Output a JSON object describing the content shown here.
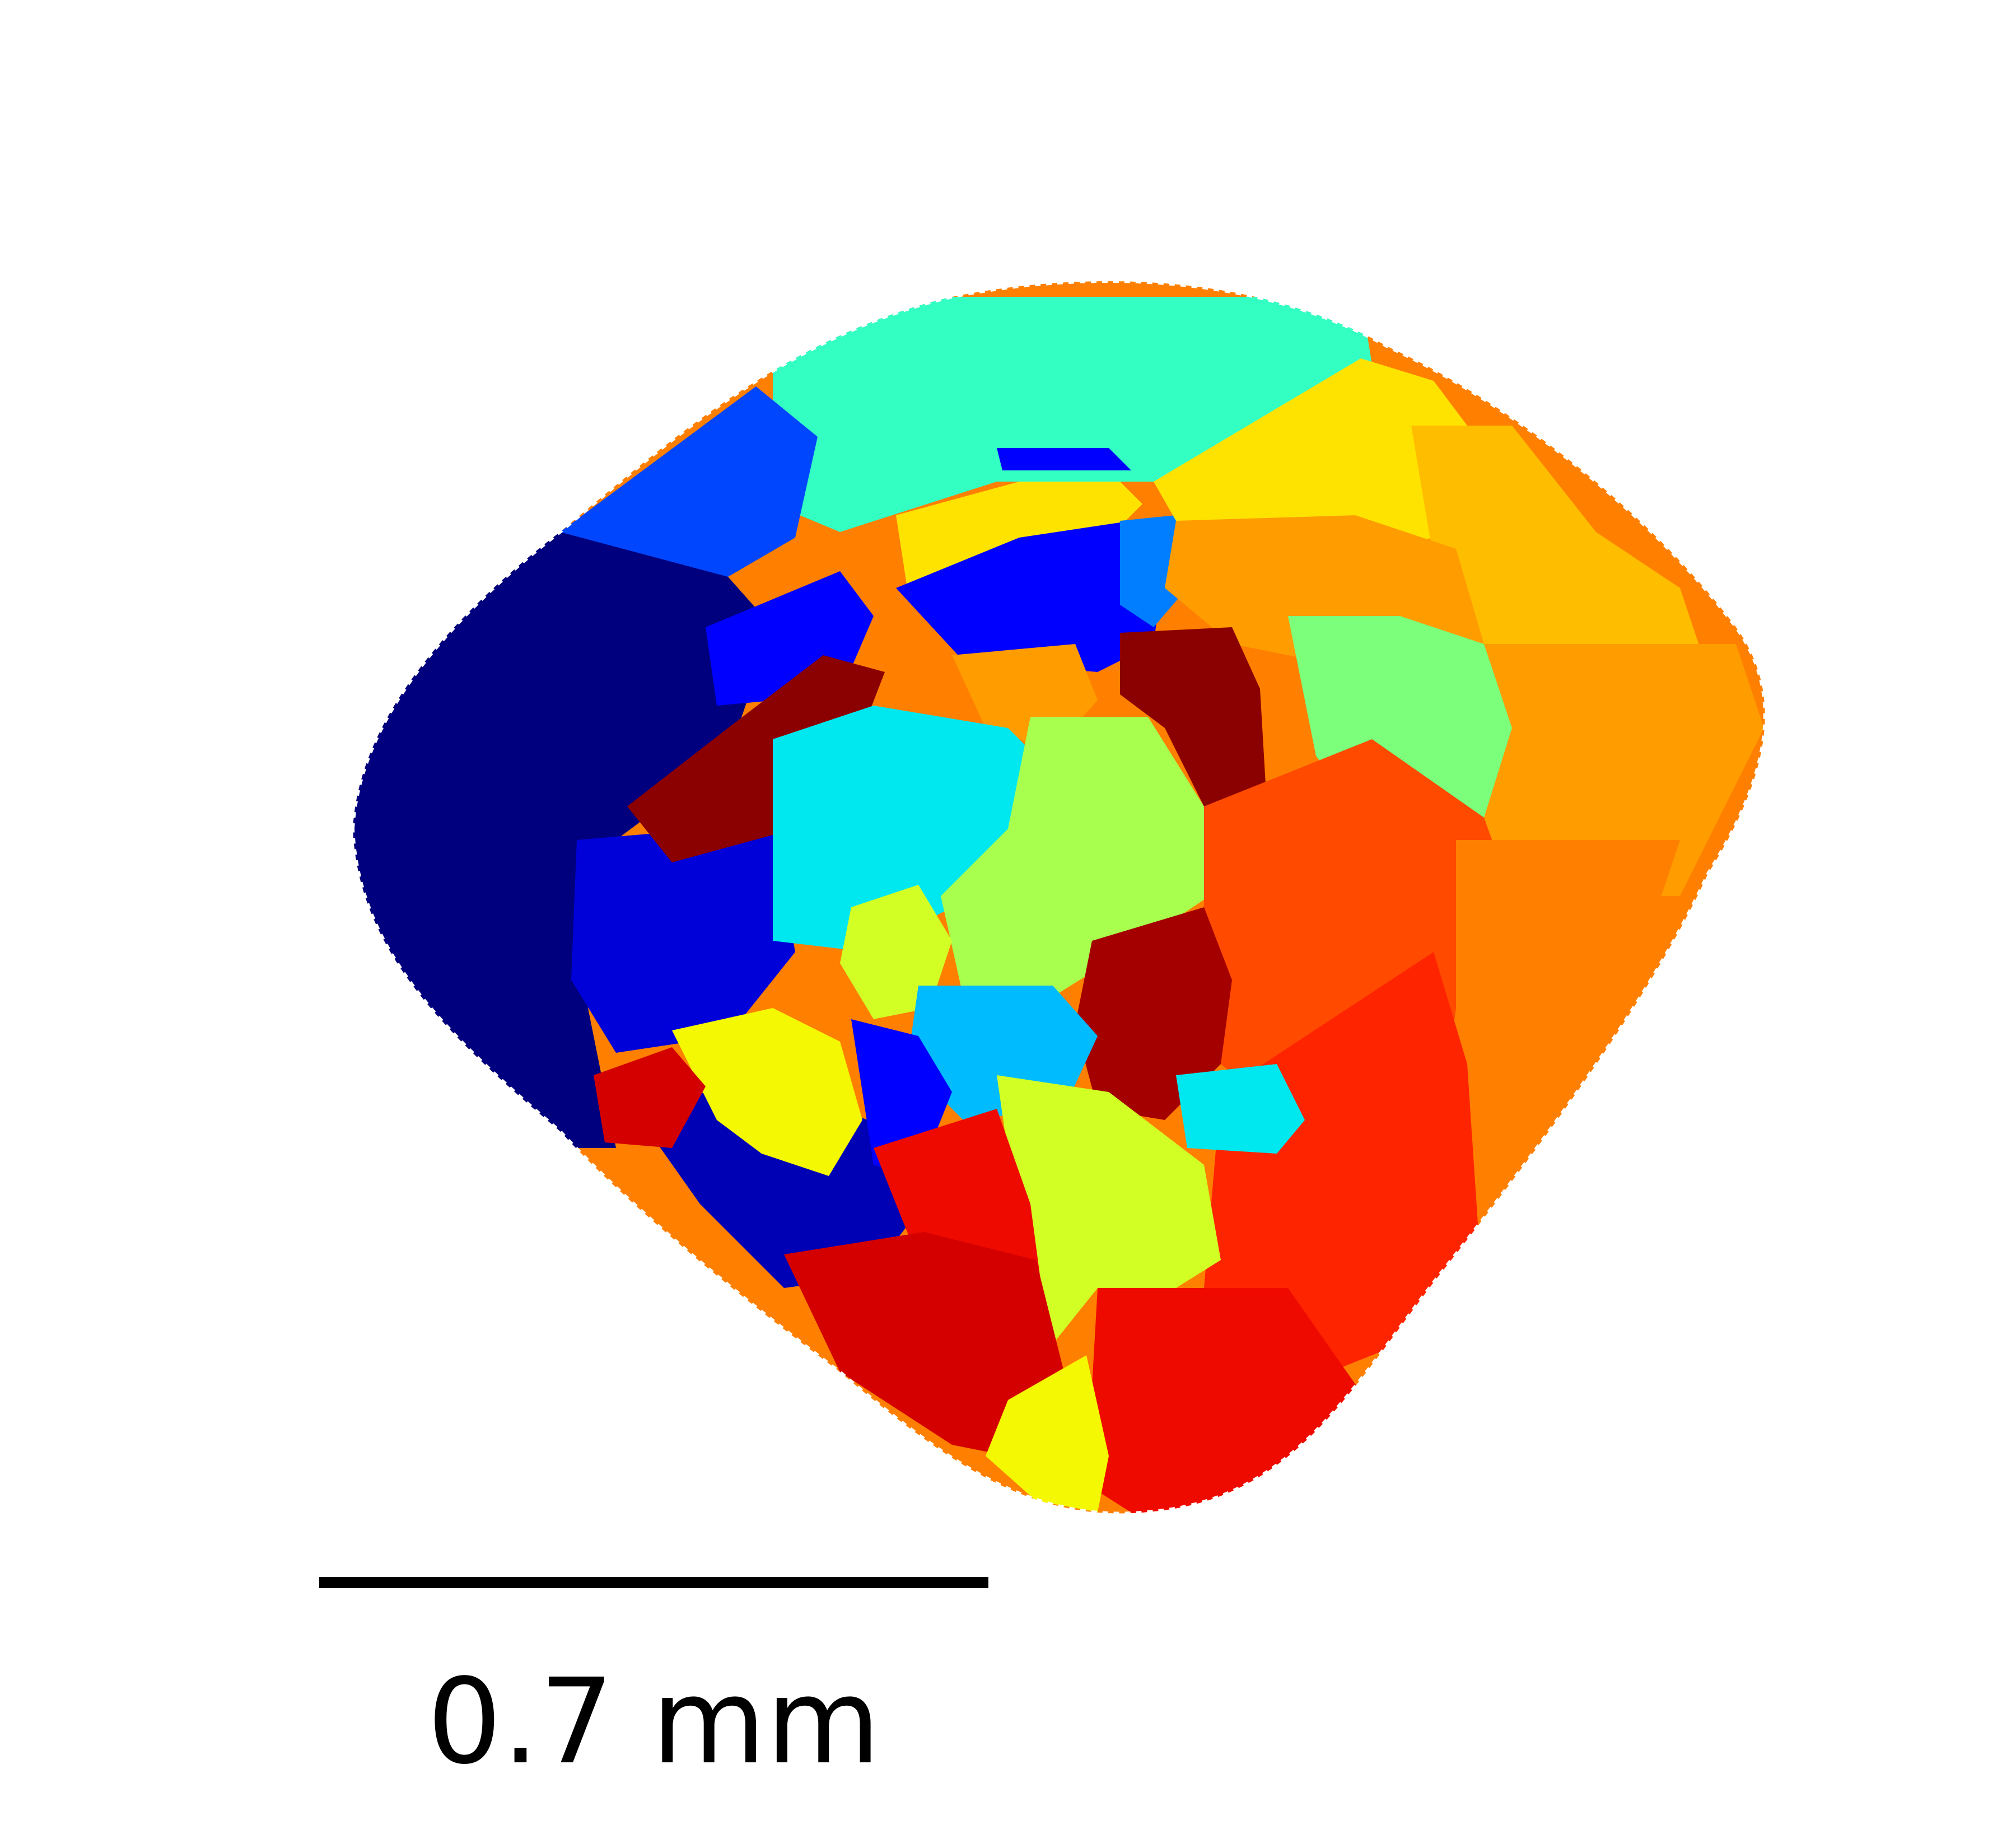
{
  "figure": {
    "scale_bar_label": "0.7 mm"
  },
  "palette": {
    "background": "#ffffff",
    "scale_bar": "#000000"
  },
  "grain_colors": [
    "#00007f",
    "#0000b4",
    "#0000d8",
    "#0000ff",
    "#0046ff",
    "#007eff",
    "#00bcff",
    "#00e8ef",
    "#33ffc3",
    "#7cff7a",
    "#a8ff4e",
    "#d2ff24",
    "#f4f802",
    "#ffe300",
    "#ffbd00",
    "#ff9c00",
    "#ff7f00",
    "#ff4a00",
    "#ff2400",
    "#ef0a00",
    "#d40000",
    "#a40000",
    "#8b0000"
  ]
}
